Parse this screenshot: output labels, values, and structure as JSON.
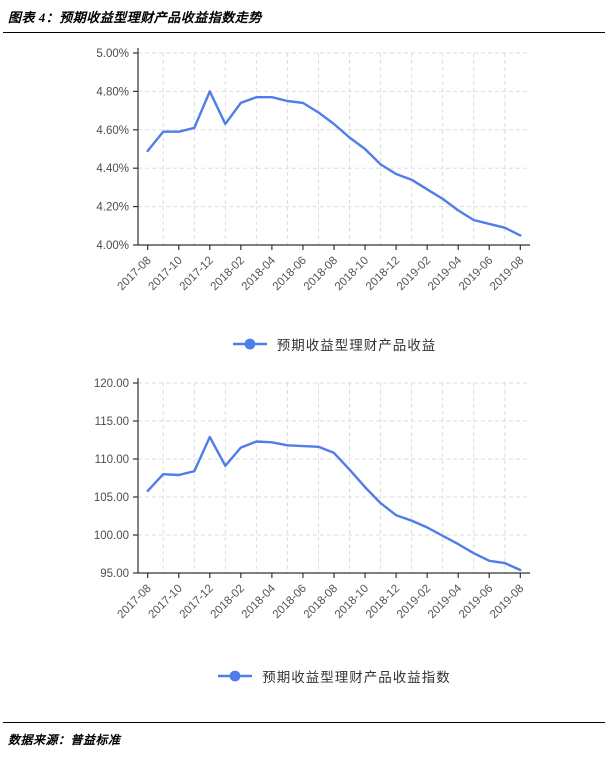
{
  "page": {
    "title": "图表 4：预期收益型理财产品收益指数走势",
    "source_label": "数据来源：普益标准"
  },
  "colors": {
    "line": "#4F7DEA",
    "axis": "#333333",
    "grid": "#DDDDDD",
    "tick_text": "#555555",
    "legend_text": "#333333"
  },
  "chart_data": [
    {
      "type": "line",
      "legend": "预期收益型理财产品收益",
      "legend_position": "bottom-center",
      "grid": true,
      "x": [
        "2017-08",
        "2017-09",
        "2017-10",
        "2017-11",
        "2017-12",
        "2018-01",
        "2018-02",
        "2018-03",
        "2018-04",
        "2018-05",
        "2018-06",
        "2018-07",
        "2018-08",
        "2018-09",
        "2018-10",
        "2018-11",
        "2018-12",
        "2019-01",
        "2019-02",
        "2019-03",
        "2019-04",
        "2019-05",
        "2019-06",
        "2019-07",
        "2019-08"
      ],
      "x_tick_labels": [
        "2017-08",
        "2017-10",
        "2017-12",
        "2018-02",
        "2018-04",
        "2018-06",
        "2018-08",
        "2018-10",
        "2018-12",
        "2019-02",
        "2019-04",
        "2019-06",
        "2019-08"
      ],
      "values": [
        4.49,
        4.59,
        4.59,
        4.61,
        4.8,
        4.63,
        4.74,
        4.77,
        4.77,
        4.75,
        4.74,
        4.69,
        4.63,
        4.56,
        4.5,
        4.42,
        4.37,
        4.34,
        4.29,
        4.24,
        4.18,
        4.13,
        4.11,
        4.09,
        4.05
      ],
      "ylim": [
        4.0,
        5.0
      ],
      "y_tick_values": [
        5.0,
        4.8,
        4.6,
        4.4,
        4.2,
        4.0
      ],
      "y_tick_labels": [
        "5.00%",
        "4.80%",
        "4.60%",
        "4.40%",
        "4.20%",
        "4.00%"
      ],
      "unit": "%"
    },
    {
      "type": "line",
      "legend": "预期收益型理财产品收益指数",
      "legend_position": "bottom-center",
      "grid": true,
      "x": [
        "2017-08",
        "2017-09",
        "2017-10",
        "2017-11",
        "2017-12",
        "2018-01",
        "2018-02",
        "2018-03",
        "2018-04",
        "2018-05",
        "2018-06",
        "2018-07",
        "2018-08",
        "2018-09",
        "2018-10",
        "2018-11",
        "2018-12",
        "2019-01",
        "2019-02",
        "2019-03",
        "2019-04",
        "2019-05",
        "2019-06",
        "2019-07",
        "2019-08"
      ],
      "x_tick_labels": [
        "2017-08",
        "2017-10",
        "2017-12",
        "2018-02",
        "2018-04",
        "2018-06",
        "2018-08",
        "2018-10",
        "2018-12",
        "2019-02",
        "2019-04",
        "2019-06",
        "2019-08"
      ],
      "values": [
        105.8,
        108.0,
        107.9,
        108.4,
        112.9,
        109.1,
        111.5,
        112.3,
        112.2,
        111.8,
        111.7,
        111.6,
        110.8,
        108.6,
        106.3,
        104.2,
        102.6,
        101.9,
        101.0,
        99.9,
        98.8,
        97.6,
        96.6,
        96.3,
        95.4
      ],
      "ylim": [
        95.0,
        120.0
      ],
      "y_tick_values": [
        120.0,
        115.0,
        110.0,
        105.0,
        100.0,
        95.0
      ],
      "y_tick_labels": [
        "120.00",
        "115.00",
        "110.00",
        "105.00",
        "100.00",
        "95.00"
      ],
      "unit": "index"
    }
  ]
}
